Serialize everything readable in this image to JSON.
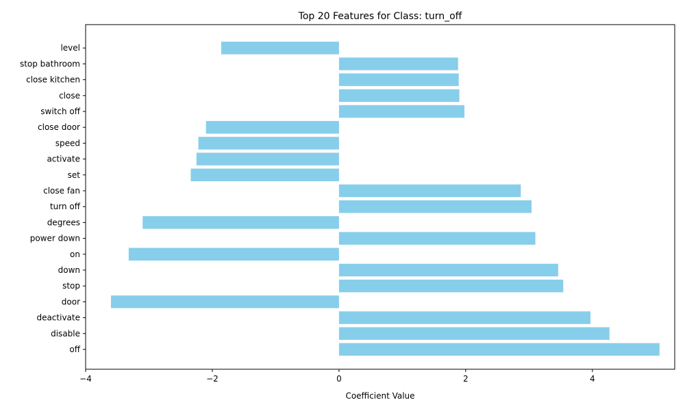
{
  "chart_data": {
    "type": "bar",
    "orientation": "horizontal",
    "title": "Top 20 Features for Class: turn_off",
    "xlabel": "Coefficient Value",
    "ylabel": "",
    "xlim": [
      -4.0,
      5.3
    ],
    "x_ticks": [
      -4,
      -2,
      0,
      2,
      4
    ],
    "x_tick_labels": [
      "−4",
      "−2",
      "0",
      "2",
      "4"
    ],
    "bar_color": "#87ceeb",
    "grid": false,
    "categories": [
      "off",
      "disable",
      "deactivate",
      "door",
      "stop",
      "down",
      "on",
      "power down",
      "degrees",
      "turn off",
      "close fan",
      "set",
      "activate",
      "speed",
      "close door",
      "switch off",
      "close",
      "close kitchen",
      "stop bathroom",
      "level"
    ],
    "values": [
      5.06,
      4.27,
      3.97,
      -3.6,
      3.54,
      3.46,
      -3.32,
      3.1,
      -3.1,
      3.04,
      2.87,
      -2.34,
      -2.25,
      -2.22,
      -2.1,
      1.98,
      1.9,
      1.89,
      1.88,
      -1.86
    ]
  }
}
